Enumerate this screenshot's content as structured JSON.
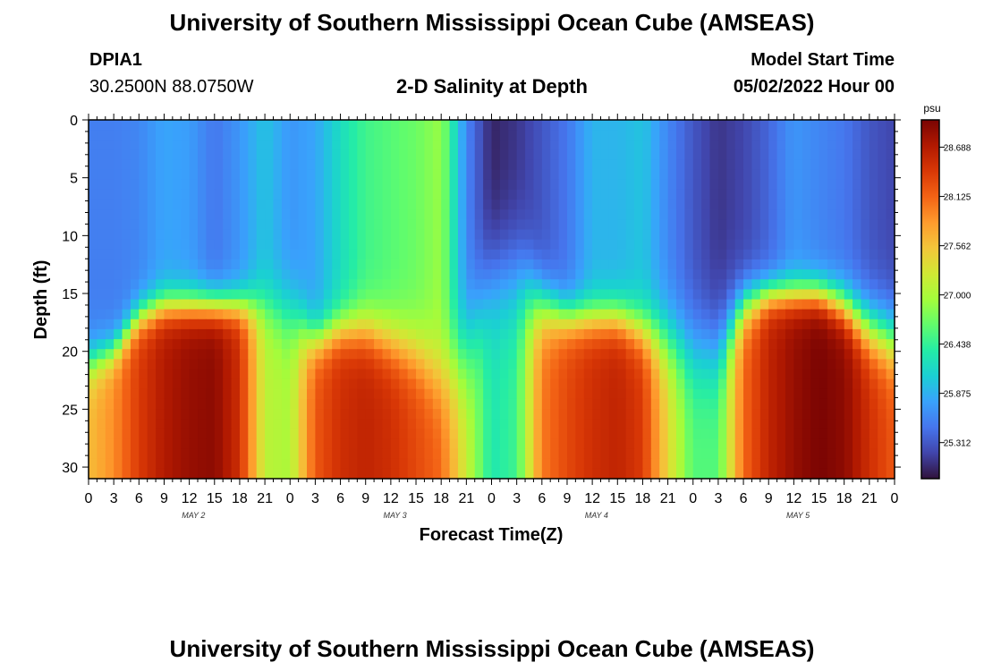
{
  "header": {
    "title": "University of Southern Mississippi Ocean Cube (AMSEAS)",
    "station": "DPIA1",
    "coordinates": "30.2500N  88.0750W",
    "subtitle": "2-D Salinity at Depth",
    "model_start_label": "Model Start Time",
    "model_start_value": "05/02/2022 Hour 00"
  },
  "footer": {
    "title": "University of Southern Mississippi Ocean Cube (AMSEAS)"
  },
  "chart_data": {
    "type": "heatmap",
    "title": "2-D Salinity at Depth",
    "xlabel": "Forecast Time(Z)",
    "ylabel": "Depth (ft)",
    "x_tick_labels": [
      "0",
      "3",
      "6",
      "9",
      "12",
      "15",
      "18",
      "21",
      "0",
      "3",
      "6",
      "9",
      "12",
      "15",
      "18",
      "21",
      "0",
      "3",
      "6",
      "9",
      "12",
      "15",
      "18",
      "21",
      "0",
      "3",
      "6",
      "9",
      "12",
      "15",
      "18",
      "21",
      "0"
    ],
    "day_labels": [
      "MAY 2",
      "MAY 3",
      "MAY 4",
      "MAY 5"
    ],
    "y_ticks": [
      0,
      5,
      10,
      15,
      20,
      25,
      30
    ],
    "ylim": [
      0,
      31
    ],
    "y_inverted": true,
    "x_range_hours": [
      0,
      96
    ],
    "colorbar": {
      "unit": "psu",
      "tick_values": [
        "28.688",
        "28.125",
        "27.562",
        "27.000",
        "26.438",
        "25.875",
        "25.312"
      ],
      "range": [
        24.9,
        29.0
      ]
    },
    "colormap": [
      "#30123b",
      "#4145ab",
      "#4675ed",
      "#39a2fc",
      "#1bcfd4",
      "#24eca6",
      "#61fc6c",
      "#a4fc3b",
      "#d1e834",
      "#f3c63a",
      "#fe9b2d",
      "#f36315",
      "#d93806",
      "#b11901",
      "#7a0403"
    ],
    "profiles": [
      {
        "hour": 0,
        "s_top": 25.55,
        "s_bottom": 27.6,
        "thermocline_ft": 21,
        "width_ft": 6
      },
      {
        "hour": 3,
        "s_top": 25.55,
        "s_bottom": 27.9,
        "thermocline_ft": 20,
        "width_ft": 5
      },
      {
        "hour": 6,
        "s_top": 25.6,
        "s_bottom": 28.4,
        "thermocline_ft": 17,
        "width_ft": 5
      },
      {
        "hour": 9,
        "s_top": 25.8,
        "s_bottom": 28.7,
        "thermocline_ft": 16,
        "width_ft": 5
      },
      {
        "hour": 12,
        "s_top": 25.75,
        "s_bottom": 28.85,
        "thermocline_ft": 16,
        "width_ft": 5
      },
      {
        "hour": 15,
        "s_top": 25.5,
        "s_bottom": 28.9,
        "thermocline_ft": 16,
        "width_ft": 5
      },
      {
        "hour": 18,
        "s_top": 25.7,
        "s_bottom": 28.5,
        "thermocline_ft": 16,
        "width_ft": 5
      },
      {
        "hour": 21,
        "s_top": 26.0,
        "s_bottom": 27.1,
        "thermocline_ft": 16,
        "width_ft": 7
      },
      {
        "hour": 24,
        "s_top": 25.7,
        "s_bottom": 27.0,
        "thermocline_ft": 17,
        "width_ft": 10
      },
      {
        "hour": 27,
        "s_top": 25.8,
        "s_bottom": 28.2,
        "thermocline_ft": 19,
        "width_ft": 6
      },
      {
        "hour": 30,
        "s_top": 26.2,
        "s_bottom": 28.5,
        "thermocline_ft": 18,
        "width_ft": 6
      },
      {
        "hour": 33,
        "s_top": 26.5,
        "s_bottom": 28.6,
        "thermocline_ft": 18,
        "width_ft": 7
      },
      {
        "hour": 36,
        "s_top": 26.6,
        "s_bottom": 28.5,
        "thermocline_ft": 19,
        "width_ft": 8
      },
      {
        "hour": 39,
        "s_top": 26.7,
        "s_bottom": 28.3,
        "thermocline_ft": 20,
        "width_ft": 9
      },
      {
        "hour": 42,
        "s_top": 26.9,
        "s_bottom": 28.1,
        "thermocline_ft": 22,
        "width_ft": 11
      },
      {
        "hour": 45,
        "s_top": 25.6,
        "s_bottom": 27.2,
        "thermocline_ft": 20,
        "width_ft": 14
      },
      {
        "hour": 48,
        "s_top": 25.0,
        "s_bottom": 26.3,
        "thermocline_ft": 14,
        "width_ft": 14
      },
      {
        "hour": 51,
        "s_top": 25.1,
        "s_bottom": 26.5,
        "thermocline_ft": 14,
        "width_ft": 14
      },
      {
        "hour": 54,
        "s_top": 25.3,
        "s_bottom": 28.0,
        "thermocline_ft": 16,
        "width_ft": 8
      },
      {
        "hour": 57,
        "s_top": 25.5,
        "s_bottom": 28.3,
        "thermocline_ft": 17,
        "width_ft": 6
      },
      {
        "hour": 60,
        "s_top": 25.9,
        "s_bottom": 28.5,
        "thermocline_ft": 17,
        "width_ft": 6
      },
      {
        "hour": 63,
        "s_top": 25.9,
        "s_bottom": 28.6,
        "thermocline_ft": 17,
        "width_ft": 6
      },
      {
        "hour": 66,
        "s_top": 26.0,
        "s_bottom": 28.4,
        "thermocline_ft": 18,
        "width_ft": 7
      },
      {
        "hour": 69,
        "s_top": 25.6,
        "s_bottom": 27.4,
        "thermocline_ft": 19,
        "width_ft": 10
      },
      {
        "hour": 72,
        "s_top": 25.3,
        "s_bottom": 26.6,
        "thermocline_ft": 20,
        "width_ft": 12
      },
      {
        "hour": 75,
        "s_top": 25.1,
        "s_bottom": 26.6,
        "thermocline_ft": 20,
        "width_ft": 12
      },
      {
        "hour": 78,
        "s_top": 25.2,
        "s_bottom": 28.1,
        "thermocline_ft": 16,
        "width_ft": 7
      },
      {
        "hour": 81,
        "s_top": 25.4,
        "s_bottom": 28.6,
        "thermocline_ft": 15,
        "width_ft": 5
      },
      {
        "hour": 84,
        "s_top": 25.7,
        "s_bottom": 28.85,
        "thermocline_ft": 15,
        "width_ft": 5
      },
      {
        "hour": 87,
        "s_top": 25.6,
        "s_bottom": 29.0,
        "thermocline_ft": 15,
        "width_ft": 5
      },
      {
        "hour": 90,
        "s_top": 25.5,
        "s_bottom": 28.9,
        "thermocline_ft": 16,
        "width_ft": 6
      },
      {
        "hour": 93,
        "s_top": 25.3,
        "s_bottom": 28.5,
        "thermocline_ft": 18,
        "width_ft": 8
      },
      {
        "hour": 96,
        "s_top": 25.2,
        "s_bottom": 28.2,
        "thermocline_ft": 19,
        "width_ft": 9
      }
    ]
  }
}
